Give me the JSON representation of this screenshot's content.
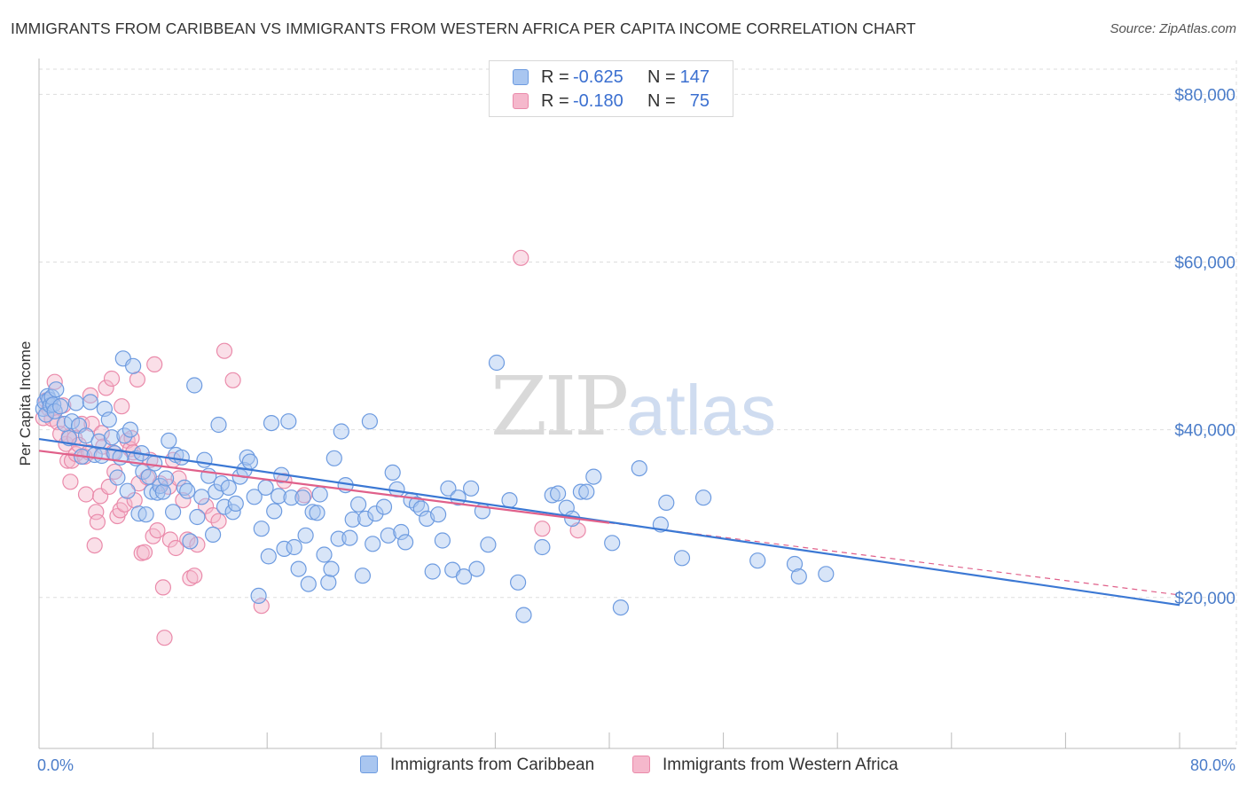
{
  "title": "IMMIGRANTS FROM CARIBBEAN VS IMMIGRANTS FROM WESTERN AFRICA PER CAPITA INCOME CORRELATION CHART",
  "source": "Source: ZipAtlas.com",
  "watermark": {
    "zip": "ZIP",
    "atlas": "atlas"
  },
  "legend": {
    "rows": [
      {
        "r_label": "R =",
        "r_value": "-0.625",
        "n_label": "N =",
        "n_value": "147"
      },
      {
        "r_label": "R =",
        "r_value": "-0.180",
        "n_label": "N =",
        "n_value": "75"
      }
    ]
  },
  "colors": {
    "caribbean_fill": "#a9c6f0",
    "caribbean_stroke": "#6d9be0",
    "caribbean_line": "#3b78d4",
    "wafrica_fill": "#f5b8cc",
    "wafrica_stroke": "#ea8aaa",
    "wafrica_line": "#e0608a",
    "axis_text": "#4a7cc9",
    "grid": "#dddddd"
  },
  "chart_data": {
    "type": "scatter",
    "title": "IMMIGRANTS FROM CARIBBEAN VS IMMIGRANTS FROM WESTERN AFRICA PER CAPITA INCOME CORRELATION CHART",
    "xlabel": "",
    "ylabel": "Per Capita Income",
    "xlim": [
      0,
      80
    ],
    "ylim": [
      2000,
      83000
    ],
    "x_tick_labels": [
      "0.0%",
      "80.0%"
    ],
    "y_ticks": [
      20000,
      40000,
      60000,
      80000
    ],
    "y_tick_labels": [
      "$20,000",
      "$40,000",
      "$60,000",
      "$80,000"
    ],
    "grid": true,
    "legend_position": "top-center and bottom",
    "series": [
      {
        "name": "Immigrants from Caribbean",
        "trend": {
          "x": [
            0,
            80
          ],
          "y": [
            38900,
            19100
          ]
        },
        "points": [
          [
            0.3,
            42500
          ],
          [
            0.4,
            43300
          ],
          [
            0.5,
            41800
          ],
          [
            0.6,
            44000
          ],
          [
            0.7,
            43600
          ],
          [
            0.8,
            42900
          ],
          [
            0.9,
            43900
          ],
          [
            1.0,
            43000
          ],
          [
            1.1,
            42200
          ],
          [
            1.2,
            44800
          ],
          [
            1.5,
            42800
          ],
          [
            1.8,
            40700
          ],
          [
            2.1,
            39000
          ],
          [
            2.3,
            41000
          ],
          [
            2.6,
            43200
          ],
          [
            2.8,
            40500
          ],
          [
            3.0,
            36800
          ],
          [
            3.3,
            39300
          ],
          [
            3.6,
            43300
          ],
          [
            3.9,
            37000
          ],
          [
            4.2,
            38600
          ],
          [
            4.4,
            36900
          ],
          [
            4.6,
            42500
          ],
          [
            4.9,
            41200
          ],
          [
            5.1,
            39100
          ],
          [
            5.3,
            37200
          ],
          [
            5.5,
            34300
          ],
          [
            5.7,
            36700
          ],
          [
            5.9,
            48500
          ],
          [
            6.0,
            39300
          ],
          [
            6.2,
            32700
          ],
          [
            6.4,
            40000
          ],
          [
            6.6,
            47600
          ],
          [
            6.8,
            36600
          ],
          [
            7.0,
            30000
          ],
          [
            7.2,
            37200
          ],
          [
            7.3,
            35000
          ],
          [
            7.5,
            29900
          ],
          [
            7.7,
            34400
          ],
          [
            7.9,
            32600
          ],
          [
            8.1,
            36000
          ],
          [
            8.3,
            32500
          ],
          [
            8.5,
            33300
          ],
          [
            8.7,
            32600
          ],
          [
            8.9,
            34200
          ],
          [
            9.1,
            38700
          ],
          [
            9.4,
            30200
          ],
          [
            9.6,
            37000
          ],
          [
            10.0,
            36700
          ],
          [
            10.2,
            33100
          ],
          [
            10.4,
            32700
          ],
          [
            10.6,
            26700
          ],
          [
            10.9,
            45300
          ],
          [
            11.1,
            29600
          ],
          [
            11.4,
            32000
          ],
          [
            11.6,
            36400
          ],
          [
            11.9,
            34500
          ],
          [
            12.2,
            27500
          ],
          [
            12.4,
            32600
          ],
          [
            12.6,
            40600
          ],
          [
            12.8,
            33600
          ],
          [
            13.0,
            30800
          ],
          [
            13.3,
            33100
          ],
          [
            13.6,
            30200
          ],
          [
            13.8,
            31200
          ],
          [
            14.1,
            34400
          ],
          [
            14.4,
            35200
          ],
          [
            14.6,
            36700
          ],
          [
            14.8,
            36200
          ],
          [
            15.1,
            32000
          ],
          [
            15.4,
            20200
          ],
          [
            15.6,
            28200
          ],
          [
            15.9,
            33100
          ],
          [
            16.1,
            24900
          ],
          [
            16.3,
            40800
          ],
          [
            16.5,
            30300
          ],
          [
            16.8,
            32100
          ],
          [
            17.0,
            34600
          ],
          [
            17.2,
            25800
          ],
          [
            17.5,
            41000
          ],
          [
            17.7,
            31900
          ],
          [
            17.9,
            26000
          ],
          [
            18.2,
            23400
          ],
          [
            18.5,
            31900
          ],
          [
            18.7,
            27400
          ],
          [
            18.9,
            21600
          ],
          [
            19.2,
            30200
          ],
          [
            19.5,
            30100
          ],
          [
            19.7,
            32300
          ],
          [
            20.0,
            25100
          ],
          [
            20.3,
            21800
          ],
          [
            20.5,
            23400
          ],
          [
            20.7,
            36600
          ],
          [
            21.0,
            27000
          ],
          [
            21.2,
            39800
          ],
          [
            21.5,
            33400
          ],
          [
            21.8,
            27100
          ],
          [
            22.0,
            29300
          ],
          [
            22.4,
            31100
          ],
          [
            22.7,
            22600
          ],
          [
            22.9,
            29400
          ],
          [
            23.2,
            41000
          ],
          [
            23.4,
            26400
          ],
          [
            23.6,
            30000
          ],
          [
            24.2,
            30800
          ],
          [
            24.5,
            27400
          ],
          [
            24.8,
            34900
          ],
          [
            25.1,
            32900
          ],
          [
            25.4,
            27800
          ],
          [
            25.7,
            26600
          ],
          [
            26.1,
            31600
          ],
          [
            26.5,
            31100
          ],
          [
            26.8,
            30600
          ],
          [
            27.2,
            29400
          ],
          [
            27.6,
            23100
          ],
          [
            28.0,
            29900
          ],
          [
            28.3,
            26800
          ],
          [
            28.7,
            33000
          ],
          [
            29.0,
            23300
          ],
          [
            29.4,
            31900
          ],
          [
            29.8,
            22500
          ],
          [
            30.3,
            33000
          ],
          [
            30.7,
            23400
          ],
          [
            31.1,
            30300
          ],
          [
            31.5,
            26300
          ],
          [
            32.1,
            48000
          ],
          [
            33.0,
            31600
          ],
          [
            33.6,
            21800
          ],
          [
            34.0,
            17900
          ],
          [
            35.3,
            26000
          ],
          [
            36.0,
            32200
          ],
          [
            36.4,
            32400
          ],
          [
            37.0,
            30700
          ],
          [
            37.4,
            29400
          ],
          [
            38.0,
            32600
          ],
          [
            38.4,
            32600
          ],
          [
            38.9,
            34400
          ],
          [
            40.2,
            26500
          ],
          [
            40.8,
            18800
          ],
          [
            42.1,
            35400
          ],
          [
            43.6,
            28700
          ],
          [
            44.0,
            31300
          ],
          [
            45.1,
            24700
          ],
          [
            46.6,
            31900
          ],
          [
            50.4,
            24400
          ],
          [
            53.0,
            24000
          ],
          [
            53.3,
            22500
          ],
          [
            55.2,
            22800
          ]
        ]
      },
      {
        "name": "Immigrants from Western Africa",
        "trend": {
          "x": [
            0,
            40
          ],
          "y": [
            37500,
            28900
          ]
        },
        "trend_extension": {
          "x": [
            40,
            80
          ],
          "y": [
            28900,
            20300
          ]
        },
        "points": [
          [
            0.3,
            41400
          ],
          [
            0.5,
            43500
          ],
          [
            0.7,
            42500
          ],
          [
            0.9,
            41300
          ],
          [
            1.1,
            45700
          ],
          [
            1.3,
            40900
          ],
          [
            1.5,
            39500
          ],
          [
            1.7,
            42900
          ],
          [
            1.9,
            38300
          ],
          [
            2.0,
            36300
          ],
          [
            2.1,
            39200
          ],
          [
            2.2,
            33800
          ],
          [
            2.3,
            36300
          ],
          [
            2.5,
            39000
          ],
          [
            2.6,
            37100
          ],
          [
            2.8,
            38200
          ],
          [
            3.0,
            40700
          ],
          [
            3.2,
            36800
          ],
          [
            3.3,
            32300
          ],
          [
            3.5,
            37300
          ],
          [
            3.6,
            44100
          ],
          [
            3.7,
            40700
          ],
          [
            3.9,
            26200
          ],
          [
            4.0,
            30200
          ],
          [
            4.1,
            29000
          ],
          [
            4.3,
            32100
          ],
          [
            4.4,
            39600
          ],
          [
            4.5,
            38000
          ],
          [
            4.7,
            45000
          ],
          [
            4.9,
            33200
          ],
          [
            5.1,
            46100
          ],
          [
            5.2,
            37300
          ],
          [
            5.3,
            35000
          ],
          [
            5.5,
            29700
          ],
          [
            5.7,
            30400
          ],
          [
            5.8,
            42800
          ],
          [
            6.0,
            31100
          ],
          [
            6.2,
            38700
          ],
          [
            6.4,
            37700
          ],
          [
            6.5,
            39000
          ],
          [
            6.6,
            37300
          ],
          [
            6.7,
            31600
          ],
          [
            6.9,
            46000
          ],
          [
            7.0,
            33600
          ],
          [
            7.2,
            25300
          ],
          [
            7.4,
            25400
          ],
          [
            7.6,
            34300
          ],
          [
            7.8,
            36400
          ],
          [
            8.0,
            27300
          ],
          [
            8.1,
            47800
          ],
          [
            8.3,
            28000
          ],
          [
            8.5,
            33600
          ],
          [
            8.7,
            21200
          ],
          [
            8.8,
            15200
          ],
          [
            9.1,
            33200
          ],
          [
            9.2,
            26900
          ],
          [
            9.4,
            36400
          ],
          [
            9.6,
            25900
          ],
          [
            9.8,
            34200
          ],
          [
            10.1,
            31600
          ],
          [
            10.4,
            26900
          ],
          [
            10.6,
            22300
          ],
          [
            10.9,
            22600
          ],
          [
            11.1,
            26300
          ],
          [
            11.7,
            30900
          ],
          [
            12.2,
            29800
          ],
          [
            12.6,
            29100
          ],
          [
            13.0,
            49400
          ],
          [
            13.6,
            45900
          ],
          [
            15.6,
            19000
          ],
          [
            17.2,
            33900
          ],
          [
            18.6,
            32200
          ],
          [
            33.8,
            60500
          ],
          [
            35.3,
            28200
          ],
          [
            37.8,
            28000
          ]
        ]
      }
    ]
  },
  "bottom_legend": {
    "items": [
      {
        "label": "Immigrants from Caribbean"
      },
      {
        "label": "Immigrants from Western Africa"
      }
    ]
  }
}
